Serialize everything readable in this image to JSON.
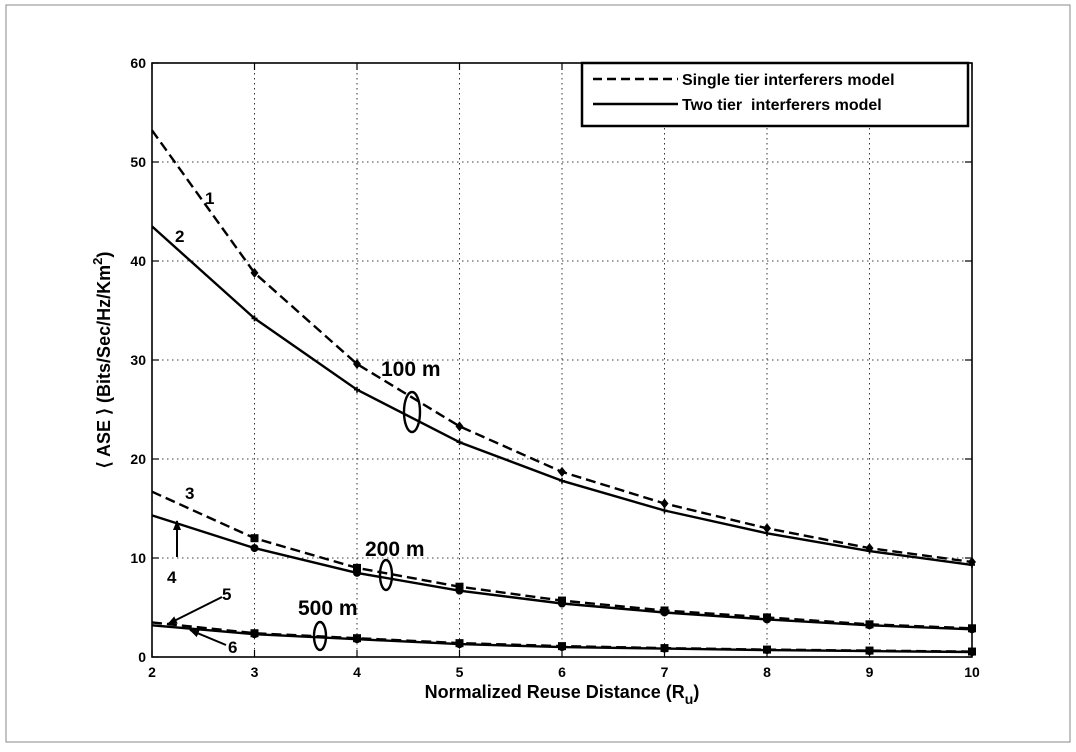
{
  "chart_data": {
    "type": "line",
    "xlabel": "Normalized Reuse Distance (R",
    "xlabel_sub": "u",
    "xlabel_close": ")",
    "ylabel": "⟨ ASE ⟩ (Bits/Sec/Hz/Km",
    "ylabel_sup": "2",
    "ylabel_close": ")",
    "xlim": [
      2,
      10
    ],
    "ylim": [
      0,
      60
    ],
    "xticks": [
      2,
      3,
      4,
      5,
      6,
      7,
      8,
      9,
      10
    ],
    "yticks": [
      0,
      10,
      20,
      30,
      40,
      50,
      60
    ],
    "grid": true,
    "legend_position": "top-right",
    "legend": [
      {
        "label": "Single tier interferers model",
        "style": "dashed"
      },
      {
        "label": "Two tier  interferers model",
        "style": "solid"
      }
    ],
    "x": [
      2,
      3,
      4,
      5,
      6,
      7,
      8,
      9,
      10
    ],
    "series": [
      {
        "name": "1",
        "group": "100 m",
        "style": "dashed",
        "marker": "diamond",
        "values": [
          53.2,
          38.8,
          29.6,
          23.3,
          18.7,
          15.5,
          13.0,
          11.0,
          9.6
        ]
      },
      {
        "name": "2",
        "group": "100 m",
        "style": "solid",
        "marker": "plus",
        "values": [
          43.5,
          34.2,
          27.0,
          21.7,
          17.8,
          14.8,
          12.5,
          10.7,
          9.3
        ]
      },
      {
        "name": "3",
        "group": "200 m",
        "style": "dashed",
        "marker": "square",
        "values": [
          16.7,
          12.0,
          9.0,
          7.1,
          5.7,
          4.7,
          4.0,
          3.3,
          2.9
        ]
      },
      {
        "name": "4",
        "group": "200 m",
        "style": "solid",
        "marker": "dot",
        "values": [
          14.3,
          11.0,
          8.5,
          6.7,
          5.4,
          4.5,
          3.8,
          3.2,
          2.8
        ]
      },
      {
        "name": "5",
        "group": "500 m",
        "style": "dashed",
        "marker": "square",
        "values": [
          3.5,
          2.4,
          1.9,
          1.4,
          1.1,
          0.9,
          0.75,
          0.65,
          0.55
        ]
      },
      {
        "name": "6",
        "group": "500 m",
        "style": "solid",
        "marker": "dot",
        "values": [
          3.2,
          2.3,
          1.8,
          1.3,
          1.0,
          0.85,
          0.7,
          0.6,
          0.5
        ]
      }
    ],
    "group_labels": [
      "100 m",
      "200 m",
      "500 m"
    ]
  }
}
